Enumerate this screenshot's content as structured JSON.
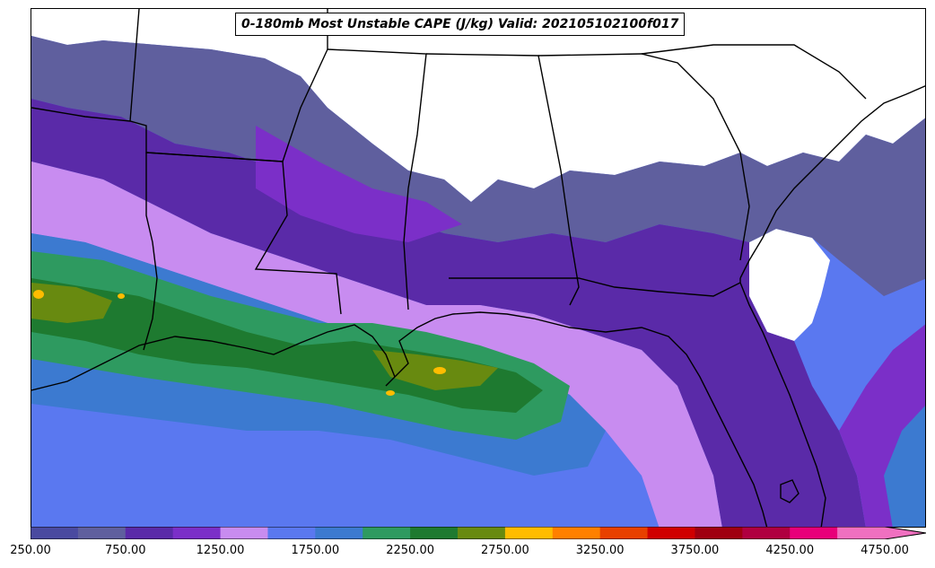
{
  "title": "0-180mb Most Unstable CAPE (J/kg) Valid: 202105102100f017",
  "colorbar": {
    "colors": [
      "#4a4aa0",
      "#5f5f9e",
      "#5a2aa8",
      "#7b2fc8",
      "#c88cf0",
      "#5a78f0",
      "#3c7ad0",
      "#2e9a60",
      "#1e7a30",
      "#688a10",
      "#ffbc00",
      "#ff8000",
      "#e84000",
      "#d00000",
      "#a00010",
      "#b00040",
      "#e8007a",
      "#f070c0"
    ],
    "tick_labels": [
      "250.00",
      "750.00",
      "1250.00",
      "1750.00",
      "2250.00",
      "2750.00",
      "3250.00",
      "3750.00",
      "4250.00",
      "4750.00"
    ]
  }
}
